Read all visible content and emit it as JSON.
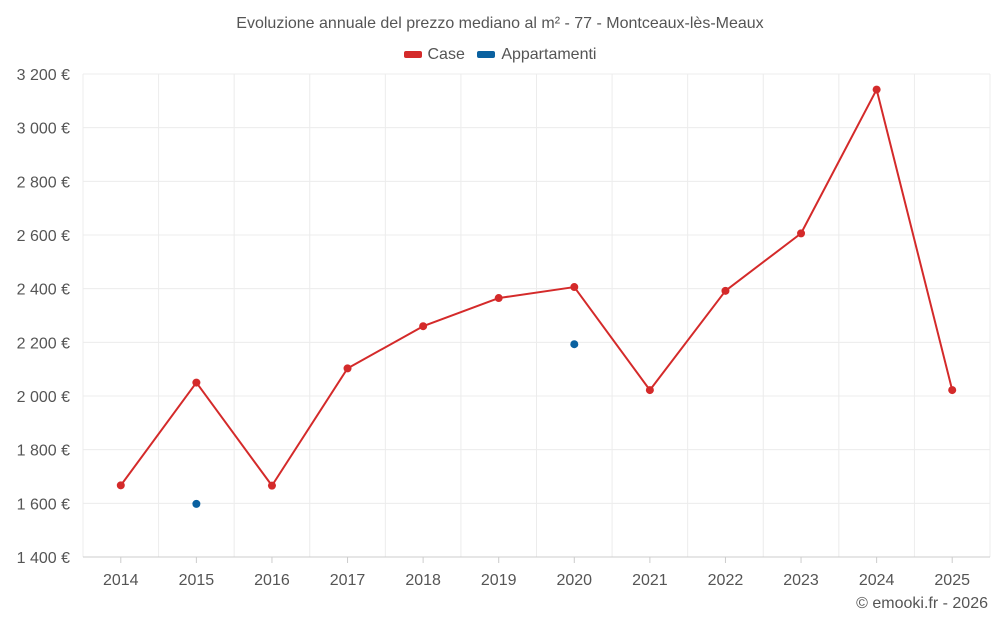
{
  "chart_data": {
    "type": "line",
    "title": "Evoluzione annuale del prezzo mediano al m² - 77 - Montceaux-lès-Meaux",
    "categories": [
      "2014",
      "2015",
      "2016",
      "2017",
      "2018",
      "2019",
      "2020",
      "2021",
      "2022",
      "2023",
      "2024",
      "2025"
    ],
    "series": [
      {
        "name": "Case",
        "color": "#d42a2a",
        "values": [
          1667,
          2050,
          1666,
          2103,
          2260,
          2365,
          2406,
          2022,
          2392,
          2606,
          3142,
          2022
        ]
      },
      {
        "name": "Appartamenti",
        "color": "#0a61a0",
        "values": [
          null,
          1598,
          null,
          null,
          null,
          null,
          2193,
          null,
          null,
          null,
          null,
          null
        ]
      }
    ],
    "ylim": [
      1400,
      3200
    ],
    "yticks": [
      1400,
      1600,
      1800,
      2000,
      2200,
      2400,
      2600,
      2800,
      3000,
      3200
    ],
    "ytick_labels": [
      "1 400 €",
      "1 600 €",
      "1 800 €",
      "2 000 €",
      "2 200 €",
      "2 400 €",
      "2 600 €",
      "2 800 €",
      "3 000 €",
      "3 200 €"
    ],
    "xlabel": "",
    "ylabel": "",
    "grid": true,
    "legend_position": "top-center"
  },
  "credit": "© emooki.fr - 2026"
}
